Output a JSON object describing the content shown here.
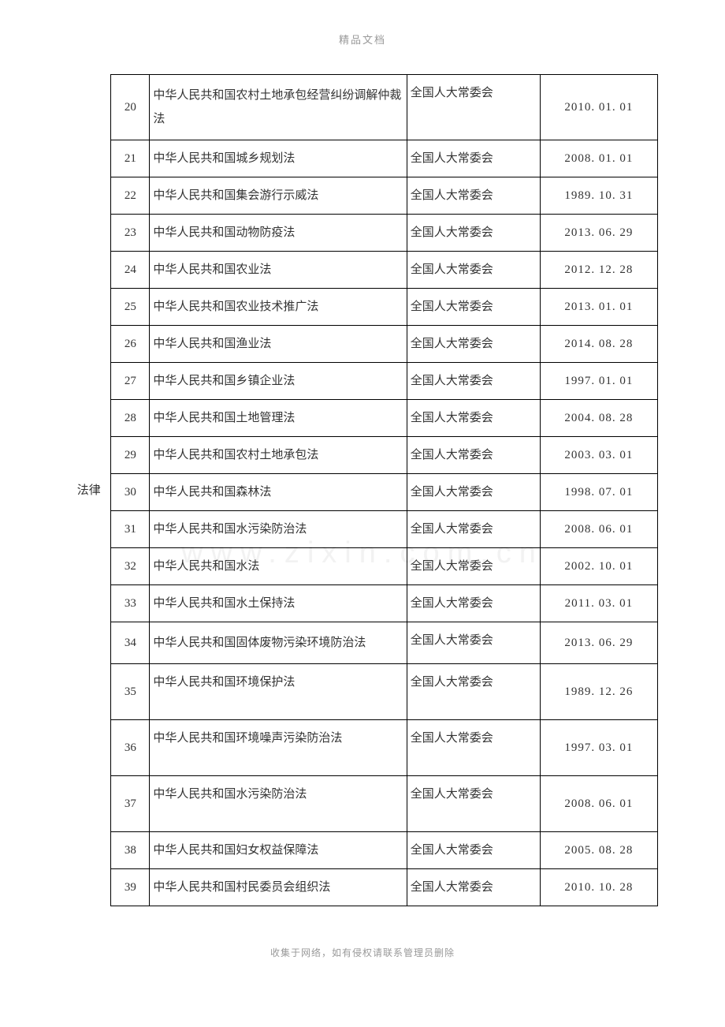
{
  "header": "精品文档",
  "footer": "收集于网络，如有侵权请联系管理员删除",
  "watermark": "www.zixin.com.cn",
  "category_label": "法律",
  "colors": {
    "text": "#333333",
    "border": "#000000",
    "header_footer": "#999999",
    "watermark": "#f2f2f2",
    "background": "#ffffff"
  },
  "fonts": {
    "body_family": "SimSun",
    "body_size": 15,
    "header_size": 13,
    "footer_size": 12
  },
  "column_widths": {
    "category": 48,
    "num": 42,
    "title": 280,
    "authority": 145,
    "date": 128
  },
  "rows": [
    {
      "num": "20",
      "title": "中华人民共和国农村土地承包经营纠纷调解仲裁法",
      "authority": "全国人大常委会",
      "date": "2010. 01. 01",
      "multiline": true
    },
    {
      "num": "21",
      "title": "中华人民共和国城乡规划法",
      "authority": "全国人大常委会",
      "date": "2008. 01. 01"
    },
    {
      "num": "22",
      "title": "中华人民共和国集会游行示威法",
      "authority": "全国人大常委会",
      "date": "1989. 10. 31"
    },
    {
      "num": "23",
      "title": "中华人民共和国动物防疫法",
      "authority": "全国人大常委会",
      "date": "2013. 06. 29"
    },
    {
      "num": "24",
      "title": "中华人民共和国农业法",
      "authority": "全国人大常委会",
      "date": "2012. 12. 28"
    },
    {
      "num": "25",
      "title": "中华人民共和国农业技术推广法",
      "authority": "全国人大常委会",
      "date": "2013. 01. 01"
    },
    {
      "num": "26",
      "title": "中华人民共和国渔业法",
      "authority": "全国人大常委会",
      "date": "2014. 08. 28"
    },
    {
      "num": "27",
      "title": "中华人民共和国乡镇企业法",
      "authority": "全国人大常委会",
      "date": "1997. 01. 01"
    },
    {
      "num": "28",
      "title": "中华人民共和国土地管理法",
      "authority": "全国人大常委会",
      "date": "2004. 08. 28"
    },
    {
      "num": "29",
      "title": "中华人民共和国农村土地承包法",
      "authority": "全国人大常委会",
      "date": "2003. 03. 01"
    },
    {
      "num": "30",
      "title": "中华人民共和国森林法",
      "authority": "全国人大常委会",
      "date": "1998. 07. 01"
    },
    {
      "num": "31",
      "title": "中华人民共和国水污染防治法",
      "authority": "全国人大常委会",
      "date": "2008. 06. 01"
    },
    {
      "num": "32",
      "title": "中华人民共和国水法",
      "authority": "全国人大常委会",
      "date": "2002. 10. 01"
    },
    {
      "num": "33",
      "title": "中华人民共和国水土保持法",
      "authority": "全国人大常委会",
      "date": "2011. 03. 01"
    },
    {
      "num": "34",
      "title": "中华人民共和国固体废物污染环境防治法",
      "authority": "全国人大常委会",
      "date": "2013. 06. 29",
      "multiline": true
    },
    {
      "num": "35",
      "title": "中华人民共和国环境保护法",
      "authority": "全国人大常委会",
      "date": "1989. 12. 26",
      "tall": true
    },
    {
      "num": "36",
      "title": "中华人民共和国环境噪声污染防治法",
      "authority": "全国人大常委会",
      "date": "1997. 03. 01",
      "tall": true
    },
    {
      "num": "37",
      "title": "中华人民共和国水污染防治法",
      "authority": "全国人大常委会",
      "date": "2008. 06. 01",
      "tall": true
    },
    {
      "num": "38",
      "title": "中华人民共和国妇女权益保障法",
      "authority": "全国人大常委会",
      "date": "2005. 08. 28"
    },
    {
      "num": "39",
      "title": "中华人民共和国村民委员会组织法",
      "authority": "全国人大常委会",
      "date": "2010. 10. 28"
    }
  ]
}
